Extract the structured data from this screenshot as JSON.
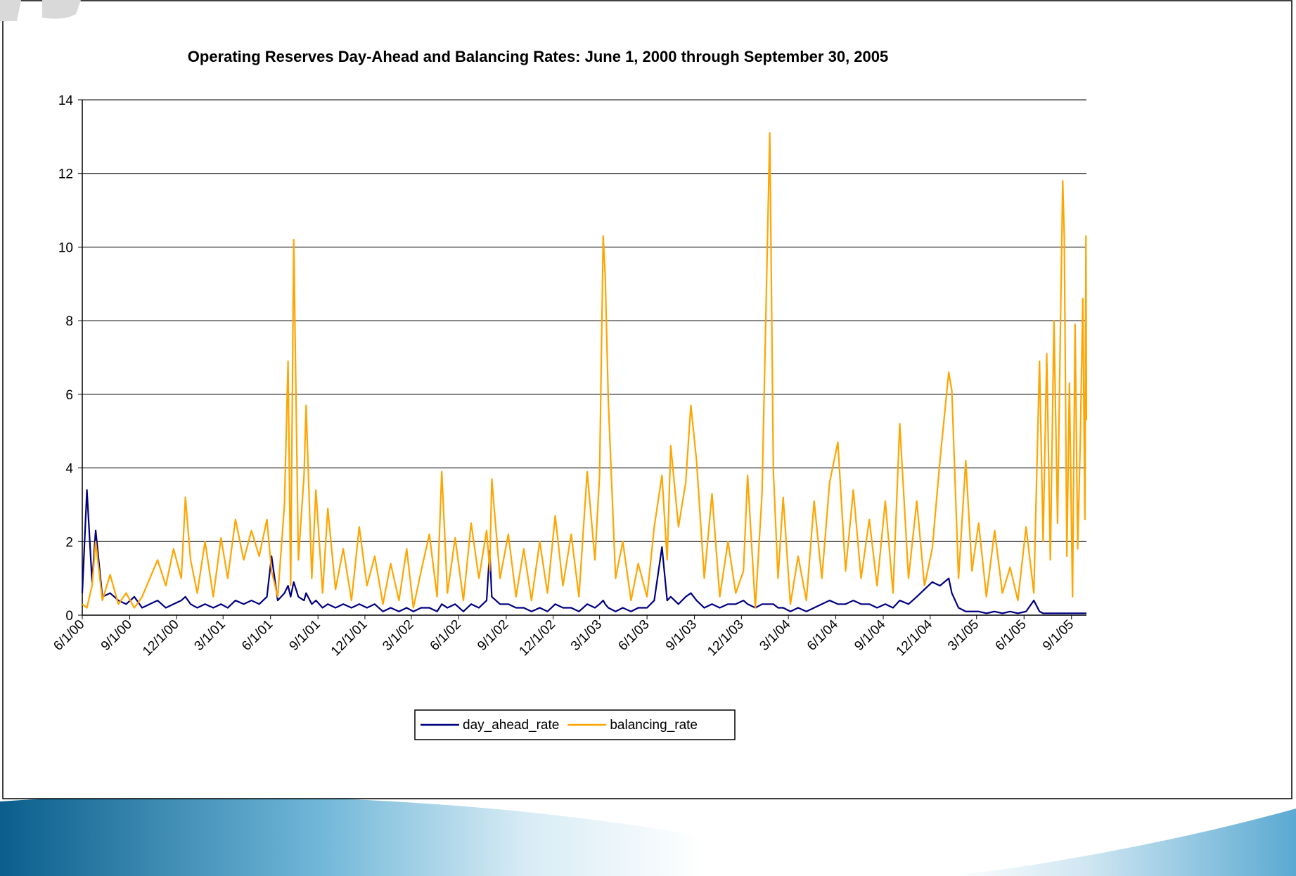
{
  "chart_data": {
    "type": "line",
    "title": "Operating Reserves Day-Ahead and Balancing Rates: June 1, 2000 through September 30, 2005",
    "x": [
      "6/1/00",
      "6/10/00",
      "6/20/00",
      "6/27/00",
      "7/10/00",
      "7/25/00",
      "8/10/00",
      "8/25/00",
      "9/10/00",
      "9/25/00",
      "10/10/00",
      "10/25/00",
      "11/10/00",
      "11/25/00",
      "12/10/00",
      "12/18/00",
      "12/28/00",
      "1/10/01",
      "1/25/01",
      "2/10/01",
      "2/25/01",
      "3/10/01",
      "3/25/01",
      "4/10/01",
      "4/25/01",
      "5/10/01",
      "5/25/01",
      "6/3/01",
      "6/15/01",
      "6/28/01",
      "7/5/01",
      "7/10/01",
      "7/16/01",
      "7/25/01",
      "8/5/01",
      "8/9/01",
      "8/20/01",
      "8/28/01",
      "9/10/01",
      "9/20/01",
      "10/5/01",
      "10/20/01",
      "11/5/01",
      "11/20/01",
      "12/5/01",
      "12/20/01",
      "1/5/02",
      "1/20/02",
      "2/5/02",
      "2/20/02",
      "3/5/02",
      "3/20/02",
      "4/5/02",
      "4/20/02",
      "4/29/02",
      "5/10/02",
      "5/25/02",
      "6/10/02",
      "6/25/02",
      "7/10/02",
      "7/25/02",
      "7/31/02",
      "8/4/02",
      "8/20/02",
      "9/5/02",
      "9/20/02",
      "10/5/02",
      "10/20/02",
      "11/5/02",
      "11/20/02",
      "12/5/02",
      "12/20/02",
      "1/5/03",
      "1/20/03",
      "2/5/03",
      "2/20/03",
      "3/1/03",
      "3/8/03",
      "3/12/03",
      "3/18/03",
      "4/1/03",
      "4/15/03",
      "5/1/03",
      "5/15/03",
      "6/1/03",
      "6/15/03",
      "6/30/03",
      "7/10/03",
      "7/17/03",
      "8/1/03",
      "8/15/03",
      "8/25/03",
      "9/5/03",
      "9/20/03",
      "10/5/03",
      "10/20/03",
      "11/5/03",
      "11/20/03",
      "12/5/03",
      "12/13/03",
      "12/28/03",
      "1/10/04",
      "1/25/04",
      "2/1/04",
      "2/10/04",
      "2/20/04",
      "3/5/04",
      "3/20/04",
      "4/5/04",
      "4/20/04",
      "5/5/04",
      "5/20/04",
      "6/5/04",
      "6/20/04",
      "7/5/04",
      "7/20/04",
      "8/5/04",
      "8/20/04",
      "9/5/04",
      "9/20/04",
      "10/3/04",
      "10/20/04",
      "11/5/04",
      "11/20/04",
      "12/5/04",
      "12/20/04",
      "1/6/05",
      "1/12/05",
      "1/25/05",
      "2/8/05",
      "2/20/05",
      "3/5/05",
      "3/20/05",
      "4/5/05",
      "4/20/05",
      "5/5/05",
      "5/20/05",
      "6/5/05",
      "6/20/05",
      "7/1/05",
      "7/8/05",
      "7/15/05",
      "7/22/05",
      "7/29/05",
      "8/5/05",
      "8/10/05",
      "8/15/05",
      "8/18/05",
      "8/23/05",
      "8/28/05",
      "9/3/05",
      "9/8/05",
      "9/13/05",
      "9/18/05",
      "9/23/05",
      "9/27/05",
      "9/29/05",
      "9/30/05"
    ],
    "series": [
      {
        "name": "day_ahead_rate",
        "color": "#000080",
        "values": [
          0.6,
          3.4,
          0.9,
          2.3,
          0.5,
          0.6,
          0.4,
          0.3,
          0.5,
          0.2,
          0.3,
          0.4,
          0.2,
          0.3,
          0.4,
          0.5,
          0.3,
          0.2,
          0.3,
          0.2,
          0.3,
          0.2,
          0.4,
          0.3,
          0.4,
          0.3,
          0.5,
          1.6,
          0.4,
          0.6,
          0.8,
          0.5,
          0.9,
          0.5,
          0.4,
          0.6,
          0.3,
          0.4,
          0.2,
          0.3,
          0.2,
          0.3,
          0.2,
          0.3,
          0.2,
          0.3,
          0.1,
          0.2,
          0.1,
          0.2,
          0.1,
          0.2,
          0.2,
          0.1,
          0.3,
          0.2,
          0.3,
          0.1,
          0.3,
          0.2,
          0.4,
          1.75,
          0.5,
          0.3,
          0.3,
          0.2,
          0.2,
          0.1,
          0.2,
          0.1,
          0.3,
          0.2,
          0.2,
          0.1,
          0.3,
          0.2,
          0.3,
          0.4,
          0.3,
          0.2,
          0.1,
          0.2,
          0.1,
          0.2,
          0.2,
          0.4,
          1.85,
          0.4,
          0.5,
          0.3,
          0.5,
          0.6,
          0.4,
          0.2,
          0.3,
          0.2,
          0.3,
          0.3,
          0.4,
          0.3,
          0.2,
          0.3,
          0.3,
          0.3,
          0.2,
          0.2,
          0.1,
          0.2,
          0.1,
          0.2,
          0.3,
          0.4,
          0.3,
          0.3,
          0.4,
          0.3,
          0.3,
          0.2,
          0.3,
          0.2,
          0.4,
          0.3,
          0.5,
          0.7,
          0.9,
          0.8,
          1.0,
          0.6,
          0.2,
          0.1,
          0.1,
          0.1,
          0.05,
          0.1,
          0.05,
          0.1,
          0.05,
          0.1,
          0.4,
          0.1,
          0.05,
          0.05,
          0.05,
          0.05,
          0.05,
          0.05,
          0.05,
          0.05,
          0.05,
          0.05,
          0.05,
          0.05,
          0.05,
          0.05,
          0.05,
          0.05,
          0.05,
          0.05
        ]
      },
      {
        "name": "balancing_rate",
        "color": "#ffa500",
        "values": [
          0.3,
          0.2,
          0.8,
          2.0,
          0.4,
          1.1,
          0.3,
          0.6,
          0.2,
          0.5,
          1.0,
          1.5,
          0.8,
          1.8,
          1.0,
          3.2,
          1.5,
          0.6,
          2.0,
          0.5,
          2.1,
          1.0,
          2.6,
          1.5,
          2.3,
          1.6,
          2.6,
          1.2,
          0.5,
          3.0,
          6.9,
          0.8,
          10.2,
          1.5,
          3.8,
          5.7,
          1.0,
          3.4,
          0.6,
          2.9,
          0.7,
          1.8,
          0.4,
          2.4,
          0.8,
          1.6,
          0.3,
          1.4,
          0.4,
          1.8,
          0.2,
          1.2,
          2.2,
          0.5,
          3.9,
          0.6,
          2.1,
          0.4,
          2.5,
          1.0,
          2.3,
          1.2,
          3.7,
          1.0,
          2.2,
          0.5,
          1.8,
          0.4,
          2.0,
          0.6,
          2.7,
          0.8,
          2.2,
          0.5,
          3.9,
          1.5,
          3.8,
          10.3,
          9.2,
          5.8,
          1.0,
          2.0,
          0.4,
          1.4,
          0.5,
          2.4,
          3.8,
          1.5,
          4.6,
          2.4,
          3.6,
          5.7,
          4.2,
          1.0,
          3.3,
          0.5,
          2.0,
          0.6,
          1.2,
          3.8,
          0.2,
          3.3,
          13.1,
          3.9,
          1.0,
          3.2,
          0.3,
          1.6,
          0.4,
          3.1,
          1.0,
          3.6,
          4.7,
          1.2,
          3.4,
          1.0,
          2.6,
          0.8,
          3.1,
          0.6,
          5.2,
          1.0,
          3.1,
          0.8,
          1.8,
          4.2,
          6.6,
          6.1,
          1.0,
          4.2,
          1.2,
          2.5,
          0.5,
          2.3,
          0.6,
          1.3,
          0.4,
          2.4,
          0.6,
          6.9,
          2.0,
          7.1,
          1.5,
          8.0,
          2.5,
          7.3,
          11.8,
          10.3,
          1.6,
          6.3,
          0.5,
          7.9,
          1.8,
          4.7,
          8.6,
          2.6,
          10.3,
          5.3
        ]
      }
    ],
    "xlim": [
      "6/1/00",
      "9/30/05"
    ],
    "xticks": [
      "6/1/00",
      "9/1/00",
      "12/1/00",
      "3/1/01",
      "6/1/01",
      "9/1/01",
      "12/1/01",
      "3/1/02",
      "6/1/02",
      "9/1/02",
      "12/1/02",
      "3/1/03",
      "6/1/03",
      "9/1/03",
      "12/1/03",
      "3/1/04",
      "6/1/04",
      "9/1/04",
      "12/1/04",
      "3/1/05",
      "6/1/05",
      "9/1/05"
    ],
    "ylim": [
      0,
      14
    ],
    "yticks": [
      0,
      2,
      4,
      6,
      8,
      10,
      12,
      14
    ],
    "grid": true,
    "legend": "bottom"
  }
}
